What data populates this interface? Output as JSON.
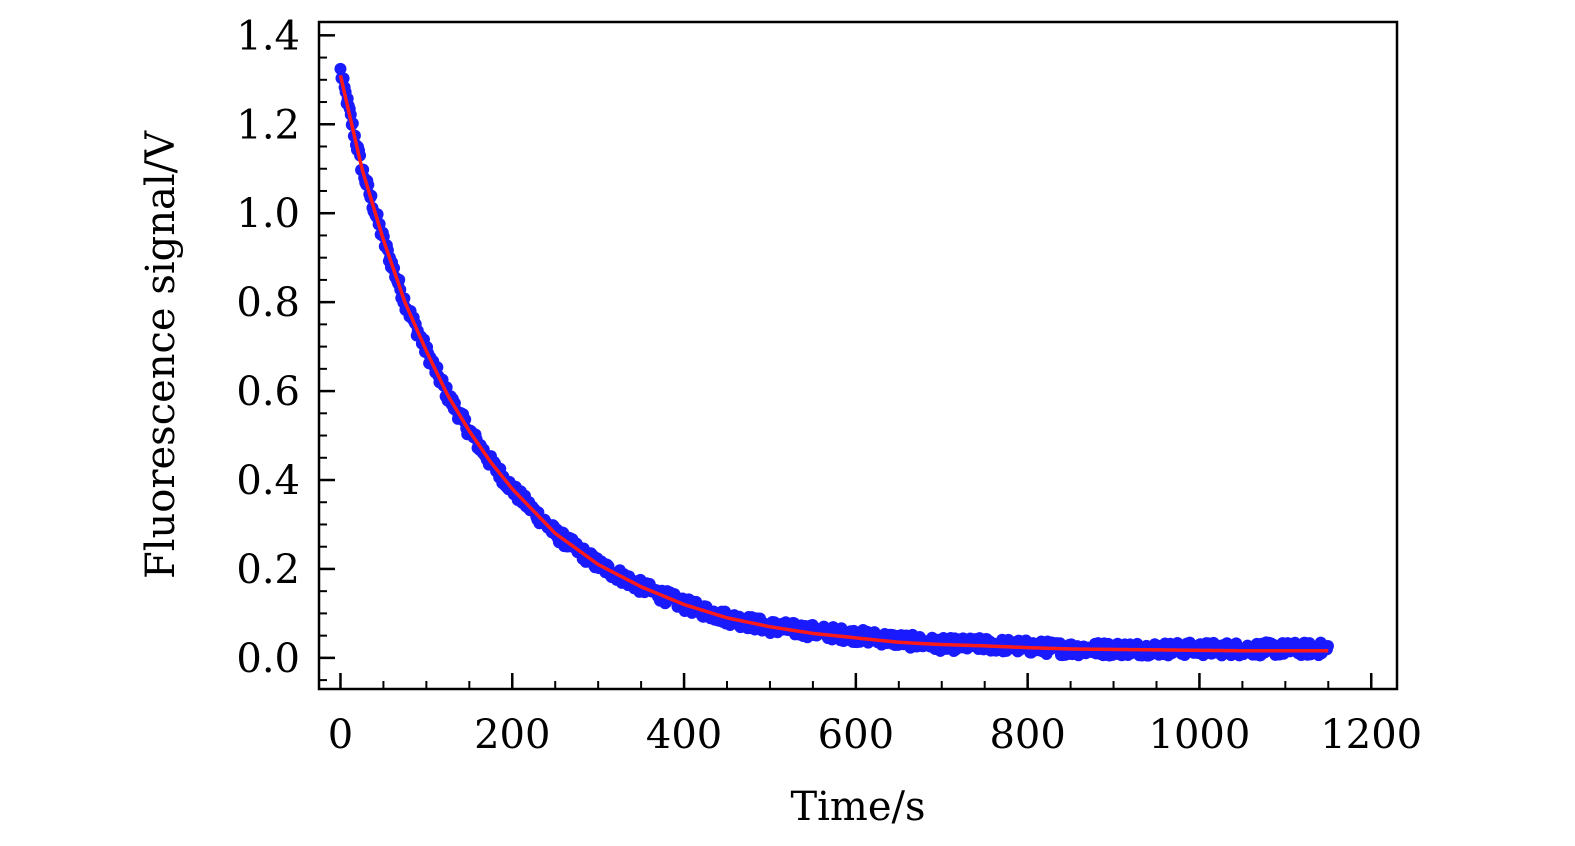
{
  "chart_data": {
    "type": "scatter",
    "title": "",
    "xlabel": "Time/s",
    "ylabel": "Fluorescence signal/V",
    "xlim": [
      -25,
      1230
    ],
    "ylim": [
      -0.07,
      1.43
    ],
    "x_ticks": [
      0,
      200,
      400,
      600,
      800,
      1000,
      1200
    ],
    "x_tick_labels": [
      "0",
      "200",
      "400",
      "600",
      "800",
      "1000",
      "1200"
    ],
    "x_minor_step": 50,
    "y_ticks": [
      0.0,
      0.2,
      0.4,
      0.6,
      0.8,
      1.0,
      1.2,
      1.4
    ],
    "y_tick_labels": [
      "0.0",
      "0.2",
      "0.4",
      "0.6",
      "0.8",
      "1.0",
      "1.2",
      "1.4"
    ],
    "y_minor_step": 0.05,
    "grid": false,
    "legend": "none",
    "series": [
      {
        "kind": "scatter",
        "color": "#1a1aff",
        "x": [
          0,
          25,
          50,
          75,
          100,
          125,
          150,
          175,
          200,
          250,
          300,
          350,
          400,
          450,
          500,
          550,
          600,
          650,
          700,
          750,
          800,
          850,
          900,
          950,
          1000,
          1050,
          1100,
          1150
        ],
        "values": [
          1.32,
          1.1,
          0.94,
          0.8,
          0.69,
          0.59,
          0.51,
          0.44,
          0.38,
          0.28,
          0.21,
          0.16,
          0.12,
          0.09,
          0.07,
          0.06,
          0.05,
          0.04,
          0.03,
          0.03,
          0.025,
          0.02,
          0.02,
          0.02,
          0.02,
          0.02,
          0.02,
          0.02
        ]
      },
      {
        "kind": "line",
        "color": "#ff1a1a",
        "x": [
          0,
          25,
          50,
          75,
          100,
          125,
          150,
          175,
          200,
          250,
          300,
          350,
          400,
          450,
          500,
          550,
          600,
          650,
          700,
          750,
          800,
          850,
          900,
          950,
          1000,
          1050,
          1100,
          1150
        ],
        "values": [
          1.31,
          1.1,
          0.94,
          0.8,
          0.69,
          0.59,
          0.51,
          0.44,
          0.38,
          0.28,
          0.21,
          0.16,
          0.12,
          0.09,
          0.07,
          0.055,
          0.045,
          0.035,
          0.03,
          0.027,
          0.023,
          0.02,
          0.019,
          0.018,
          0.017,
          0.016,
          0.016,
          0.016
        ]
      }
    ]
  }
}
